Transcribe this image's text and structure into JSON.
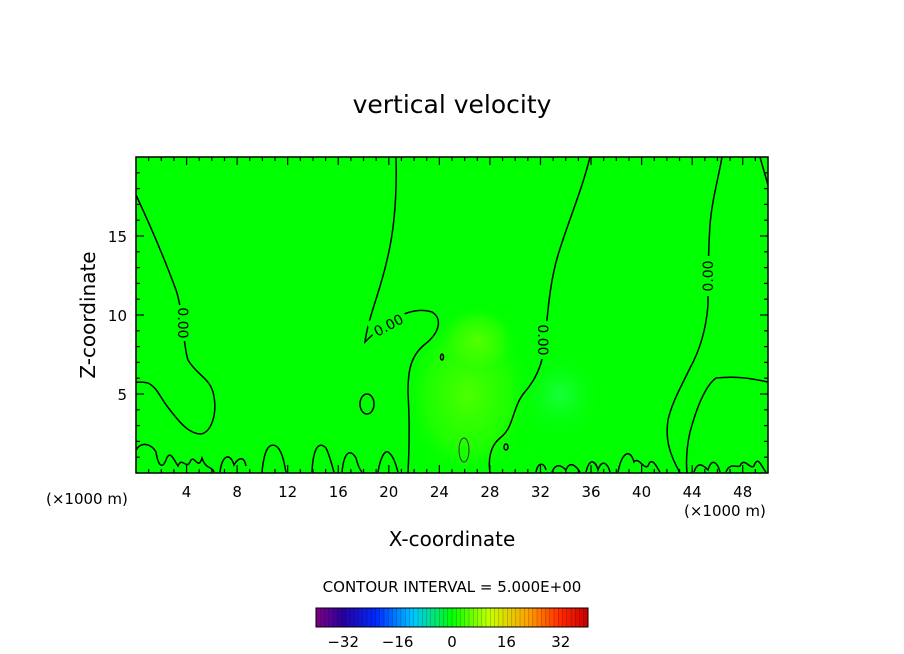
{
  "chart_data": {
    "type": "contour",
    "title": "vertical velocity",
    "xlabel": "X-coordinate",
    "ylabel": "Z-coordinate",
    "x_unit_left": "(×1000 m)",
    "x_unit_right": "(×1000 m)",
    "xlim": [
      0,
      50
    ],
    "ylim": [
      0,
      20
    ],
    "x_ticks": [
      4,
      8,
      12,
      16,
      20,
      24,
      28,
      32,
      36,
      40,
      44,
      48
    ],
    "y_ticks": [
      5,
      10,
      15
    ],
    "contour_interval_text": "CONTOUR INTERVAL = 5.000E+00",
    "contour_label": "0.00",
    "colorbar": {
      "min": -40,
      "max": 40,
      "ticks": [
        -32,
        -16,
        0,
        16,
        32
      ]
    },
    "background_color": "#00ff00"
  }
}
